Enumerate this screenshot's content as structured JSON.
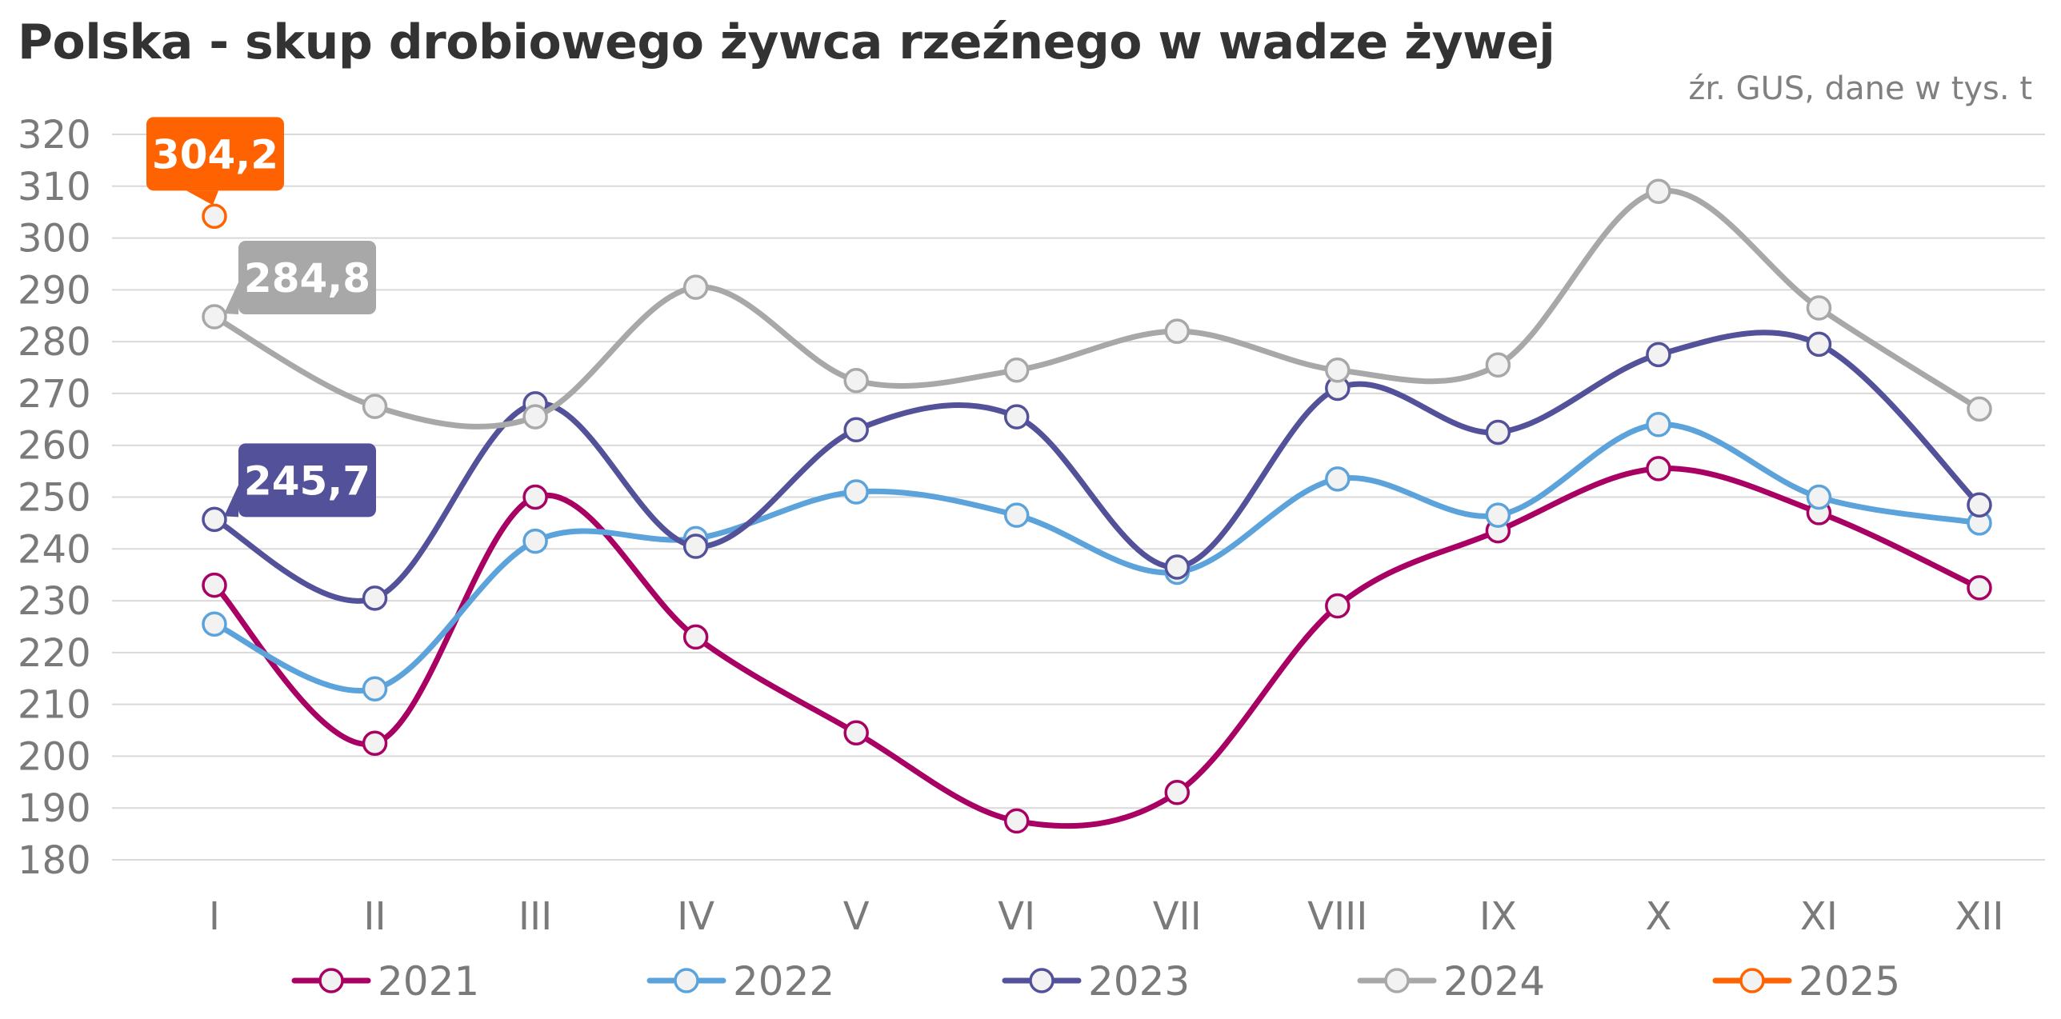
{
  "title": "Polska - skup drobiowego żywca rzeźnego w wadze żywej",
  "source": "źr. GUS, dane w tys. t",
  "chart_data": {
    "type": "line",
    "categories": [
      "I",
      "II",
      "III",
      "IV",
      "V",
      "VI",
      "VII",
      "VIII",
      "IX",
      "X",
      "XI",
      "XII"
    ],
    "ylim": [
      180,
      320
    ],
    "yticks": [
      180,
      190,
      200,
      210,
      220,
      230,
      240,
      250,
      260,
      270,
      280,
      290,
      300,
      310,
      320
    ],
    "grid": true,
    "legend_position": "bottom",
    "series": [
      {
        "name": "2021",
        "color": "#A80063",
        "values": [
          233,
          202.5,
          250,
          223,
          204.5,
          187.5,
          193,
          229,
          243.5,
          255.5,
          247,
          232.5
        ]
      },
      {
        "name": "2022",
        "color": "#5BA3DA",
        "values": [
          225.5,
          213,
          241.5,
          242,
          251,
          246.5,
          235.5,
          253.5,
          246.5,
          264,
          250,
          245
        ]
      },
      {
        "name": "2023",
        "color": "#525199",
        "values": [
          245.7,
          230.5,
          268,
          240.5,
          263,
          265.5,
          236.5,
          271,
          262.5,
          277.5,
          279.5,
          248.5
        ]
      },
      {
        "name": "2024",
        "color": "#A8A8A8",
        "values": [
          284.8,
          267.5,
          265.5,
          290.5,
          272.5,
          274.5,
          282,
          274.5,
          275.5,
          309,
          286.5,
          267
        ]
      },
      {
        "name": "2025",
        "color": "#FF6200",
        "values": [
          304.2,
          null,
          null,
          null,
          null,
          null,
          null,
          null,
          null,
          null,
          null,
          null
        ]
      }
    ],
    "annotations": [
      {
        "series": "2025",
        "category": "I",
        "text": "304,2",
        "color": "#FF6200"
      },
      {
        "series": "2024",
        "category": "I",
        "text": "284,8",
        "color": "#A8A8A8"
      },
      {
        "series": "2023",
        "category": "I",
        "text": "245,7",
        "color": "#525199"
      }
    ]
  }
}
